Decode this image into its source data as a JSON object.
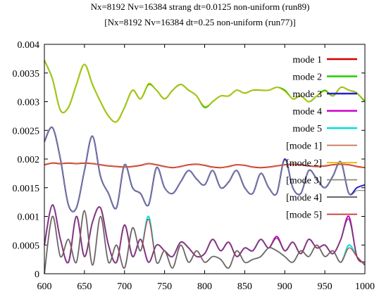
{
  "chart_data": {
    "type": "line",
    "title_line1": "Nx=8192 Nv=16384 strang dt=0.0125   non-uniform (run89)",
    "title_line2": "[Nx=8192 Nv=16384 dt=0.25 non-uniform (run77)]",
    "xlim": [
      600,
      1000
    ],
    "ylim": [
      0,
      0.004
    ],
    "x_ticks": [
      "600",
      "650",
      "700",
      "750",
      "800",
      "850",
      "900",
      "950",
      "1000"
    ],
    "x_tick_values": [
      600,
      650,
      700,
      750,
      800,
      850,
      900,
      950,
      1000
    ],
    "y_ticks": [
      "0",
      "0.0005",
      "0.001",
      "0.0015",
      "0.002",
      "0.0025",
      "0.003",
      "0.0035",
      "0.004"
    ],
    "y_tick_values": [
      0,
      0.0005,
      0.001,
      0.0015,
      0.002,
      0.0025,
      0.003,
      0.0035,
      0.004
    ],
    "legend_position": "top-right",
    "x": [
      600,
      610,
      620,
      630,
      640,
      650,
      660,
      670,
      680,
      690,
      700,
      710,
      720,
      730,
      740,
      750,
      760,
      770,
      780,
      790,
      800,
      810,
      820,
      830,
      840,
      850,
      860,
      870,
      880,
      890,
      900,
      910,
      920,
      930,
      940,
      950,
      960,
      970,
      980,
      990,
      1000
    ],
    "series": [
      {
        "name": "mode 1",
        "color": "#d40000",
        "width": 2,
        "values": [
          0.0019,
          0.00193,
          0.00192,
          0.00193,
          0.00192,
          0.00193,
          0.00192,
          0.0019,
          0.00188,
          0.00187,
          0.00186,
          0.00187,
          0.00189,
          0.00192,
          0.0019,
          0.00187,
          0.00185,
          0.00187,
          0.0019,
          0.00191,
          0.00189,
          0.00186,
          0.00185,
          0.00187,
          0.0019,
          0.00189,
          0.00186,
          0.00185,
          0.00186,
          0.00188,
          0.0019,
          0.00191,
          0.0019,
          0.00188,
          0.00187,
          0.00188,
          0.0019,
          0.00191,
          0.0019,
          0.00187,
          0.00185
        ]
      },
      {
        "name": "mode 2",
        "color": "#22cc00",
        "width": 2,
        "values": [
          0.00372,
          0.0034,
          0.00285,
          0.0029,
          0.0033,
          0.00365,
          0.0033,
          0.003,
          0.00275,
          0.00265,
          0.0029,
          0.0032,
          0.00305,
          0.0033,
          0.0032,
          0.00305,
          0.0032,
          0.0033,
          0.0032,
          0.0031,
          0.0029,
          0.003,
          0.0031,
          0.0031,
          0.0032,
          0.00315,
          0.0032,
          0.0032,
          0.0032,
          0.00325,
          0.0032,
          0.00305,
          0.0031,
          0.003,
          0.0031,
          0.0032,
          0.0031,
          0.00325,
          0.0032,
          0.00315,
          0.003
        ]
      },
      {
        "name": "mode 3",
        "color": "#2020cc",
        "width": 2,
        "values": [
          0.0023,
          0.00255,
          0.002,
          0.0012,
          0.00115,
          0.0018,
          0.0024,
          0.0017,
          0.0014,
          0.00115,
          0.0019,
          0.0015,
          0.0014,
          0.0012,
          0.00185,
          0.0015,
          0.0014,
          0.0016,
          0.0018,
          0.00165,
          0.00155,
          0.0018,
          0.0015,
          0.0016,
          0.0018,
          0.0015,
          0.0014,
          0.00175,
          0.0015,
          0.0014,
          0.002,
          0.0015,
          0.0014,
          0.0018,
          0.00165,
          0.0015,
          0.0017,
          0.00195,
          0.0014,
          0.0015,
          0.00155
        ]
      },
      {
        "name": "mode 4",
        "color": "#cc00cc",
        "width": 2,
        "values": [
          0.0005,
          0.0012,
          0.0006,
          0.0002,
          0.001,
          0.0003,
          0.0009,
          0.00115,
          0.0005,
          0.0002,
          0.00085,
          0.0003,
          0.0006,
          0.0002,
          0.0005,
          0.0004,
          0.0003,
          0.00055,
          0.00045,
          0.0003,
          0.00035,
          0.0006,
          0.0004,
          0.00055,
          0.0003,
          0.00045,
          0.0004,
          0.0006,
          0.00045,
          0.00065,
          0.0004,
          0.00055,
          0.00035,
          0.0006,
          0.00045,
          0.0005,
          0.00035,
          0.0006,
          0.001,
          0.0003,
          0.0002
        ]
      },
      {
        "name": "mode 5",
        "color": "#00e0e0",
        "width": 2,
        "values": [
          0.0,
          0.001,
          0.0003,
          0.0006,
          0.0002,
          0.0011,
          0.00015,
          0.001,
          0.0002,
          0.0005,
          0.0001,
          0.0008,
          0.0004,
          0.001,
          0.0002,
          0.0004,
          0.0001,
          0.0005,
          0.0002,
          0.0004,
          0.0002,
          0.0003,
          0.00025,
          0.0001,
          0.0004,
          0.0002,
          0.00025,
          0.0003,
          0.00045,
          0.0004,
          0.0003,
          0.0002,
          0.0004,
          0.0003,
          0.0005,
          0.0003,
          0.0004,
          0.0002,
          0.0005,
          0.0003,
          0.00015
        ]
      },
      {
        "name": "[mode 1]",
        "color": "#c87050",
        "width": 1.2,
        "values": [
          0.0019,
          0.00193,
          0.00192,
          0.00193,
          0.00192,
          0.00193,
          0.00192,
          0.0019,
          0.00188,
          0.00187,
          0.00186,
          0.00187,
          0.00189,
          0.00192,
          0.0019,
          0.00187,
          0.00185,
          0.00187,
          0.0019,
          0.00191,
          0.00189,
          0.00186,
          0.00185,
          0.00187,
          0.0019,
          0.00189,
          0.00186,
          0.00185,
          0.00186,
          0.00188,
          0.0019,
          0.00191,
          0.0019,
          0.00188,
          0.00187,
          0.00188,
          0.0019,
          0.00191,
          0.0019,
          0.00187,
          0.00185
        ]
      },
      {
        "name": "[mode 2]",
        "color": "#e6b800",
        "width": 1.2,
        "values": [
          0.00372,
          0.0034,
          0.00285,
          0.0029,
          0.0033,
          0.00365,
          0.0033,
          0.003,
          0.00275,
          0.00265,
          0.0029,
          0.0032,
          0.00305,
          0.00332,
          0.0032,
          0.00305,
          0.0032,
          0.0033,
          0.0032,
          0.0031,
          0.00292,
          0.003,
          0.0031,
          0.0031,
          0.0032,
          0.00315,
          0.0032,
          0.0032,
          0.0032,
          0.00325,
          0.00318,
          0.00305,
          0.0031,
          0.003,
          0.0031,
          0.00318,
          0.0031,
          0.00325,
          0.0032,
          0.00315,
          0.00302
        ]
      },
      {
        "name": "[mode 3]",
        "color": "#8a8a7a",
        "width": 1.2,
        "values": [
          0.0023,
          0.00255,
          0.002,
          0.0012,
          0.00115,
          0.0018,
          0.0024,
          0.0017,
          0.0014,
          0.00115,
          0.0019,
          0.0015,
          0.0014,
          0.0012,
          0.00185,
          0.0015,
          0.0014,
          0.0016,
          0.0018,
          0.00165,
          0.00155,
          0.0018,
          0.0015,
          0.0016,
          0.0018,
          0.0015,
          0.0014,
          0.00175,
          0.0015,
          0.0014,
          0.00198,
          0.0015,
          0.0014,
          0.0018,
          0.00165,
          0.0015,
          0.0017,
          0.00195,
          0.0014,
          0.00145,
          0.00145
        ]
      },
      {
        "name": "[mode 4]",
        "color": "#555555",
        "width": 1.2,
        "values": [
          0.0005,
          0.0012,
          0.0006,
          0.0002,
          0.001,
          0.0003,
          0.0009,
          0.00115,
          0.0005,
          0.0002,
          0.00085,
          0.0003,
          0.0006,
          0.0002,
          0.0005,
          0.0004,
          0.0003,
          0.00055,
          0.00045,
          0.0003,
          0.00035,
          0.0006,
          0.0004,
          0.00055,
          0.0003,
          0.00045,
          0.0004,
          0.0006,
          0.00045,
          0.00062,
          0.0004,
          0.00055,
          0.00035,
          0.0006,
          0.00045,
          0.0005,
          0.00035,
          0.0006,
          0.00095,
          0.0003,
          0.0002
        ]
      },
      {
        "name": "[mode 5]",
        "color": "#c83030",
        "width": 1.2,
        "values": [
          0.0,
          0.001,
          0.0003,
          0.0006,
          0.0002,
          0.0011,
          0.00015,
          0.001,
          0.0002,
          0.0005,
          0.0001,
          0.0008,
          0.0004,
          0.00095,
          0.0002,
          0.0004,
          0.0001,
          0.0005,
          0.0002,
          0.0004,
          0.0002,
          0.0003,
          0.00025,
          0.0001,
          0.0004,
          0.0002,
          0.00025,
          0.0003,
          0.00045,
          0.0004,
          0.0003,
          0.0002,
          0.0004,
          0.0003,
          0.0005,
          0.0003,
          0.0004,
          0.0002,
          0.00045,
          0.0003,
          0.00015
        ]
      }
    ]
  }
}
